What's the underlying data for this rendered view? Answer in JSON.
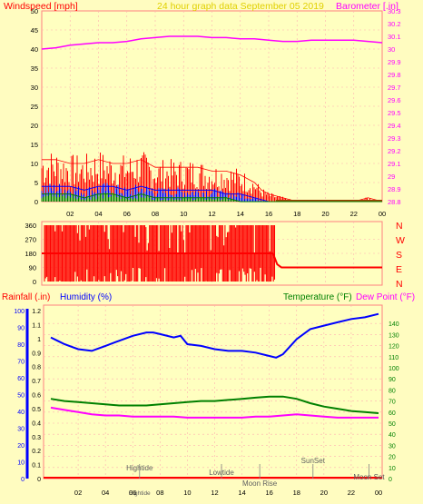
{
  "chart_data": [
    {
      "type": "line",
      "panel": "wind-barometer",
      "title": "24 hour graph data   September 05 2019",
      "ylabel_left": "Windspeed [mph]",
      "ylabel_right": "Barometer [.in]",
      "ylim_left": [
        0,
        50
      ],
      "ylim_right": [
        28.8,
        30.3
      ],
      "yticks_left": [
        "0",
        "5",
        "10",
        "15",
        "20",
        "25",
        "30",
        "35",
        "40",
        "45",
        "50"
      ],
      "yticks_right": [
        "28.8",
        "28.9",
        "29",
        "29.1",
        "29.2",
        "29.3",
        "29.4",
        "29.5",
        "29.6",
        "29.7",
        "29.8",
        "29.9",
        "30",
        "30.1",
        "30.2",
        "30.3"
      ],
      "xticks": [
        "02",
        "04",
        "06",
        "08",
        "10",
        "12",
        "14",
        "16",
        "18",
        "20",
        "22",
        "00"
      ],
      "grid": true,
      "series": [
        {
          "name": "Barometer",
          "axis": "right",
          "color": "#ff00ff",
          "x": [
            0,
            1,
            2,
            3,
            4,
            5,
            6,
            7,
            8,
            9,
            10,
            11,
            12,
            13,
            14,
            15,
            16,
            17,
            18,
            19,
            20,
            21,
            22,
            23,
            24
          ],
          "y": [
            30.0,
            30.01,
            30.03,
            30.04,
            30.05,
            30.05,
            30.06,
            30.08,
            30.09,
            30.1,
            30.1,
            30.1,
            30.09,
            30.09,
            30.08,
            30.08,
            30.07,
            30.06,
            30.06,
            30.07,
            30.07,
            30.07,
            30.07,
            30.06,
            30.05
          ]
        },
        {
          "name": "Wind gust",
          "axis": "left",
          "color": "#ff0000",
          "x": [
            0,
            1,
            2,
            3,
            4,
            5,
            6,
            7,
            8,
            9,
            10,
            11,
            12,
            13,
            14,
            15,
            15.5,
            16,
            17,
            18,
            19,
            20,
            21,
            22,
            23,
            24
          ],
          "y": [
            11,
            11,
            10,
            10,
            11,
            10,
            10,
            11,
            9,
            9,
            9,
            9,
            8,
            8,
            7,
            5,
            3,
            2,
            1,
            0,
            0,
            0,
            0,
            0,
            1,
            0
          ]
        },
        {
          "name": "Wind average",
          "axis": "left",
          "color": "#0000ff",
          "x": [
            0,
            1,
            2,
            3,
            4,
            5,
            6,
            7,
            8,
            9,
            10,
            11,
            12,
            13,
            14,
            15,
            16,
            17,
            18,
            19,
            20,
            21,
            22,
            23,
            24
          ],
          "y": [
            4,
            4,
            4,
            3,
            4,
            4,
            3,
            4,
            3,
            3,
            3,
            3,
            3,
            2,
            2,
            1,
            0,
            0,
            0,
            0,
            0,
            0,
            0,
            0,
            0
          ]
        },
        {
          "name": "Wind low",
          "axis": "left",
          "color": "#008000",
          "x": [
            0,
            1,
            2,
            3,
            4,
            5,
            6,
            7,
            8,
            9,
            10,
            11,
            12,
            13,
            14,
            15,
            16,
            17,
            18,
            19,
            20,
            21,
            22,
            23,
            24
          ],
          "y": [
            2,
            2,
            2,
            1,
            2,
            2,
            1,
            2,
            1,
            1,
            1,
            1,
            1,
            1,
            0,
            0,
            0,
            0,
            0,
            0,
            0,
            0,
            0,
            0,
            0
          ]
        }
      ]
    },
    {
      "type": "line",
      "panel": "wind-direction",
      "ylim": [
        0,
        360
      ],
      "yticks": [
        "0",
        "90",
        "180",
        "270",
        "360"
      ],
      "compass_labels": [
        "N",
        "W",
        "S",
        "E",
        "N"
      ],
      "xlim": [
        0,
        24
      ],
      "grid": true,
      "series": [
        {
          "name": "Wind direction",
          "color": "#ff0000",
          "x": [
            0,
            16.3,
            16.6,
            16.9,
            24
          ],
          "y": [
            180,
            180,
            110,
            90,
            90
          ]
        }
      ]
    },
    {
      "type": "line",
      "panel": "rain-humidity-temperature",
      "ylabel_left_1": "Rainfall (.in)",
      "ylabel_left_2": "Humidity (%)",
      "ylabel_right_1": "Temperature (°F)",
      "ylabel_right_2": "Dew Point (°F)",
      "ylim_rain": [
        0,
        1.2
      ],
      "ylim_humidity": [
        0,
        100
      ],
      "ylim_temp": [
        0,
        150
      ],
      "yticks_rain": [
        "0",
        "0.1",
        "0.2",
        "0.3",
        "0.4",
        "0.5",
        "0.6",
        "0.7",
        "0.8",
        "0.9",
        "1",
        "1.1",
        "1.2"
      ],
      "yticks_humidity": [
        "0",
        "10",
        "20",
        "30",
        "40",
        "50",
        "60",
        "70",
        "80",
        "90",
        "100"
      ],
      "yticks_temp": [
        "0",
        "10",
        "20",
        "30",
        "40",
        "50",
        "60",
        "70",
        "80",
        "90",
        "100",
        "110",
        "120",
        "130",
        "140"
      ],
      "xticks": [
        "02",
        "04",
        "06",
        "08",
        "10",
        "12",
        "14",
        "16",
        "18",
        "20",
        "22",
        "00"
      ],
      "grid": true,
      "series": [
        {
          "name": "Humidity",
          "axis": "humidity",
          "color": "#0000ff",
          "x": [
            0,
            0.5,
            1,
            2,
            3,
            4,
            5,
            6,
            7,
            7.5,
            8,
            9,
            9.5,
            10,
            11,
            12,
            13,
            14,
            15,
            16,
            16.5,
            17,
            18,
            19,
            20,
            21,
            22,
            23,
            24
          ],
          "y": [
            84,
            82,
            80,
            77,
            76,
            79,
            82,
            85,
            87,
            87,
            86,
            84,
            85,
            80,
            79,
            77,
            76,
            76,
            75,
            73,
            72,
            74,
            83,
            89,
            91,
            93,
            95,
            96,
            98
          ]
        },
        {
          "name": "Temperature",
          "axis": "temp",
          "color": "#008000",
          "x": [
            0,
            1,
            2,
            3,
            4,
            5,
            6,
            7,
            8,
            9,
            10,
            11,
            12,
            13,
            14,
            15,
            16,
            17,
            18,
            19,
            20,
            21,
            22,
            23,
            24
          ],
          "y": [
            72,
            70,
            69,
            68,
            67,
            66,
            66,
            66,
            67,
            68,
            69,
            70,
            70,
            71,
            72,
            73,
            74,
            74,
            72,
            68,
            65,
            63,
            61,
            60,
            59
          ]
        },
        {
          "name": "Dew Point",
          "axis": "temp",
          "color": "#ff00ff",
          "x": [
            0,
            1,
            2,
            3,
            4,
            5,
            6,
            7,
            8,
            9,
            10,
            11,
            12,
            13,
            14,
            15,
            16,
            17,
            18,
            19,
            20,
            21,
            22,
            23,
            24
          ],
          "y": [
            64,
            62,
            60,
            58,
            57,
            57,
            56,
            56,
            56,
            56,
            55,
            55,
            55,
            55,
            55,
            56,
            56,
            57,
            58,
            57,
            56,
            55,
            55,
            55,
            55
          ]
        }
      ],
      "events": [
        {
          "label": "Hightide",
          "x": 6.5
        },
        {
          "label": "Lowtide",
          "x": 12.5
        },
        {
          "label": "Moon Rise",
          "x": 15.3
        },
        {
          "label": "SunSet",
          "x": 19.2
        },
        {
          "label": "Moon Set",
          "x": 23.3
        }
      ],
      "bottom_labels": [
        {
          "label": "Hightide",
          "x": 6.5
        }
      ]
    }
  ]
}
